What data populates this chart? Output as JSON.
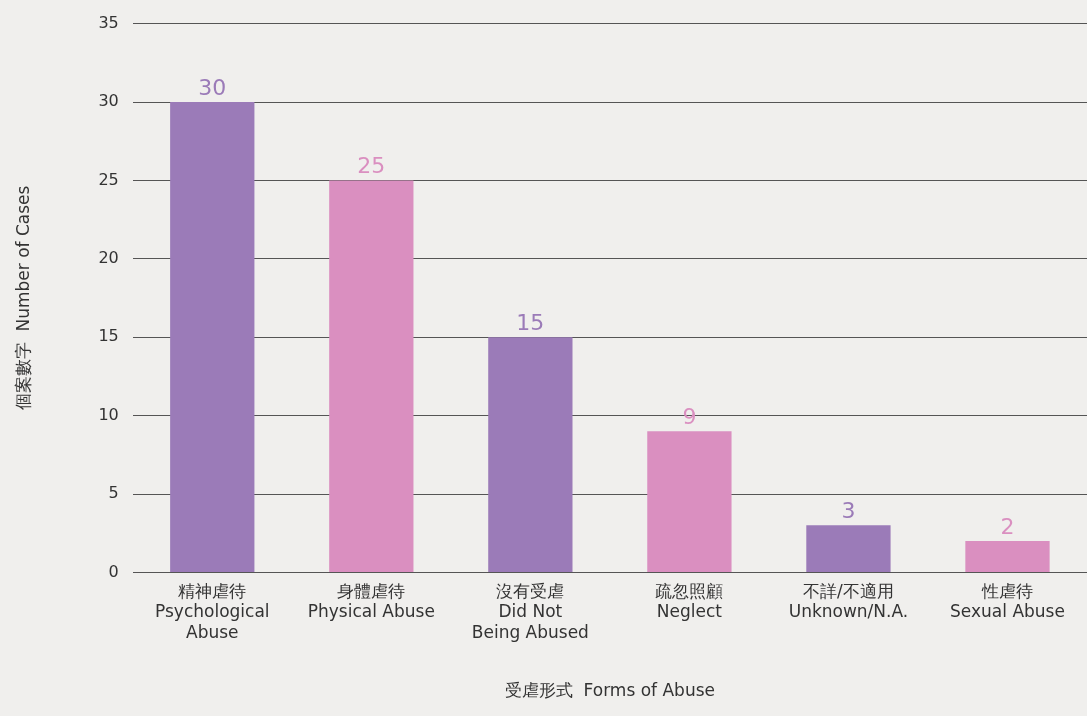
{
  "chart_data": {
    "type": "bar",
    "xlabel": "受虐形式  Forms of Abuse",
    "ylabel": "個案數字  Number of Cases",
    "categories": [
      "精神虐待\nPsychological\nAbuse",
      "身體虐待\nPhysical Abuse",
      "沒有受虐\nDid Not\nBeing Abused",
      "疏忽照顧\nNeglect",
      "不詳/不適用\nUnknown/N.A.",
      "性虐待\nSexual Abuse"
    ],
    "values": [
      30,
      25,
      15,
      9,
      3,
      2
    ],
    "colors": [
      "#9b7bb8",
      "#da8fc0",
      "#9b7bb8",
      "#da8fc0",
      "#9b7bb8",
      "#da8fc0"
    ],
    "ylim": [
      0,
      35
    ],
    "yticks": [
      0,
      5,
      10,
      15,
      20,
      25,
      30,
      35
    ],
    "grid": "y",
    "data_labels": true
  }
}
